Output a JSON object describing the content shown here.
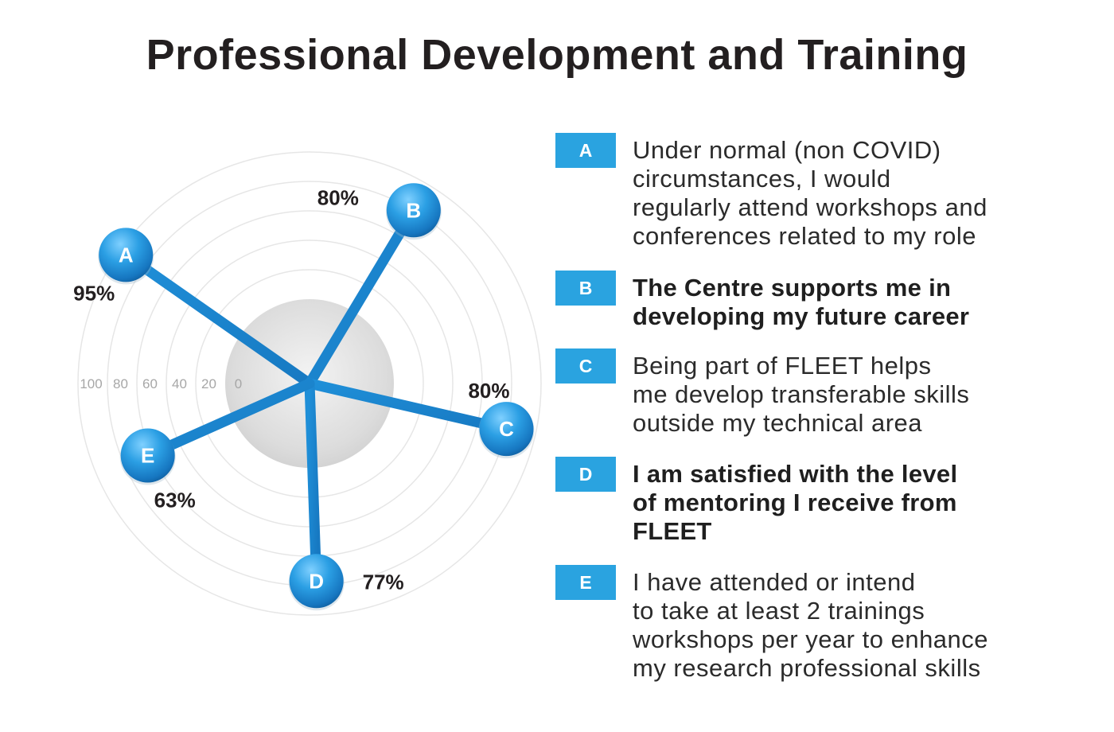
{
  "title": "Professional Development and Training",
  "chart_data": {
    "type": "radar",
    "title": "Professional Development and Training",
    "scale_labels": [
      "100",
      "80",
      "60",
      "40",
      "20",
      "0"
    ],
    "range": [
      0,
      100
    ],
    "series": [
      {
        "label": "A",
        "value": 95,
        "value_label": "95%"
      },
      {
        "label": "B",
        "value": 80,
        "value_label": "80%"
      },
      {
        "label": "C",
        "value": 80,
        "value_label": "80%"
      },
      {
        "label": "D",
        "value": 77,
        "value_label": "77%"
      },
      {
        "label": "E",
        "value": 63,
        "value_label": "63%"
      }
    ],
    "colors": {
      "spoke": "#1a86cc",
      "node": "#1e8fd6",
      "rings": "#e6e6e6",
      "center": "#dedede",
      "scale_text": "#a7a7a7"
    }
  },
  "legend": [
    {
      "key": "A",
      "text": "Under normal (non COVID) circumstances, I would regularly attend workshops and conferences related to my role",
      "lines": [
        "Under normal (non COVID)",
        "circumstances, I would",
        "regularly attend workshops and",
        "conferences related to my role"
      ],
      "bold": false
    },
    {
      "key": "B",
      "text": "The Centre supports me in developing my future career",
      "lines": [
        "The Centre supports me in",
        "developing my future career"
      ],
      "bold": true
    },
    {
      "key": "C",
      "text": "Being part of FLEET helps me develop transferable skills outside my technical area",
      "lines": [
        "Being part of FLEET helps",
        "me develop transferable skills",
        "outside my technical area"
      ],
      "bold": false
    },
    {
      "key": "D",
      "text": "I am satisfied with the level of mentoring I receive from FLEET",
      "lines": [
        "I am satisfied with the level",
        "of mentoring I receive from",
        "FLEET"
      ],
      "bold": true
    },
    {
      "key": "E",
      "text": "I have attended or intend to take at least 2 trainings workshops per year to enhance my research professional skills",
      "lines": [
        "I have attended or intend",
        "to take at least 2 trainings",
        "workshops per year to enhance",
        "my research professional skills"
      ],
      "bold": false
    }
  ],
  "accent_color": "#2aa3e0"
}
